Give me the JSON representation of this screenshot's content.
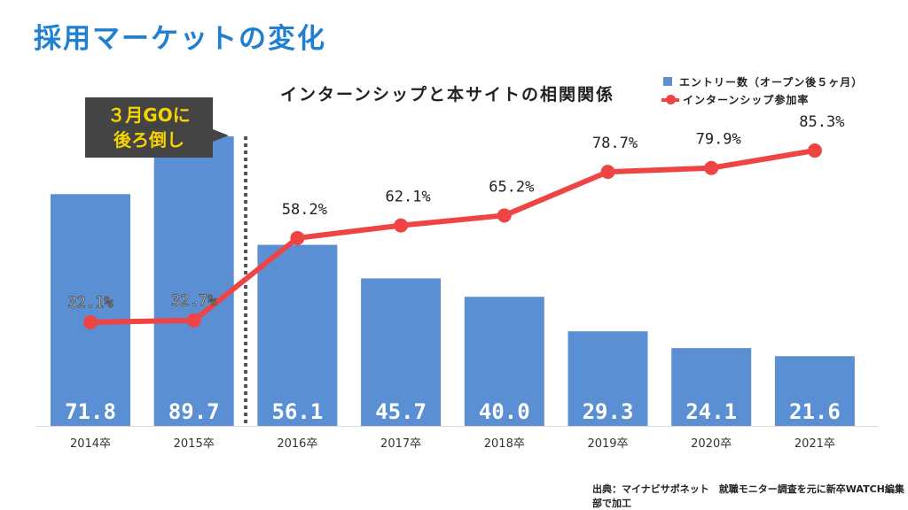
{
  "page_title": "採用マーケットの変化",
  "callout": {
    "line1": "３月GOに",
    "line2": "後ろ倒し"
  },
  "source": "出典：マイナビサポネット　就職モニター調査を元に新卒WATCH編集部で加工",
  "colors": {
    "bar": "#5b8fd4",
    "line": "#ef4444",
    "bar_label": "#ffffff",
    "title": "#1f7fd0",
    "callout_bg": "#444444",
    "callout_text": "#f5d400"
  },
  "chart_data": {
    "type": "bar",
    "title": "インターンシップと本サイトの相関関係",
    "categories": [
      "2014卒",
      "2015卒",
      "2016卒",
      "2017卒",
      "2018卒",
      "2019卒",
      "2020卒",
      "2021卒"
    ],
    "series": [
      {
        "name": "エントリー数（オープン後５ヶ月）",
        "type": "bar",
        "values": [
          71.8,
          89.7,
          56.1,
          45.7,
          40.0,
          29.3,
          24.1,
          21.6
        ],
        "labels": [
          "71.8",
          "89.7",
          "56.1",
          "45.7",
          "40.0",
          "29.3",
          "24.1",
          "21.6"
        ]
      },
      {
        "name": "インターンシップ参加率",
        "type": "line",
        "values": [
          32.1,
          32.7,
          58.2,
          62.1,
          65.2,
          78.7,
          79.9,
          85.3
        ],
        "labels": [
          "32.1%",
          "32.7%",
          "58.2%",
          "62.1%",
          "65.2%",
          "78.7%",
          "79.9%",
          "85.3%"
        ]
      }
    ],
    "bar_axis_range": [
      0,
      110
    ],
    "line_axis_range": [
      0,
      110
    ],
    "grid": false,
    "legend_position": "top-right",
    "divider_between": [
      "2015卒",
      "2016卒"
    ]
  }
}
